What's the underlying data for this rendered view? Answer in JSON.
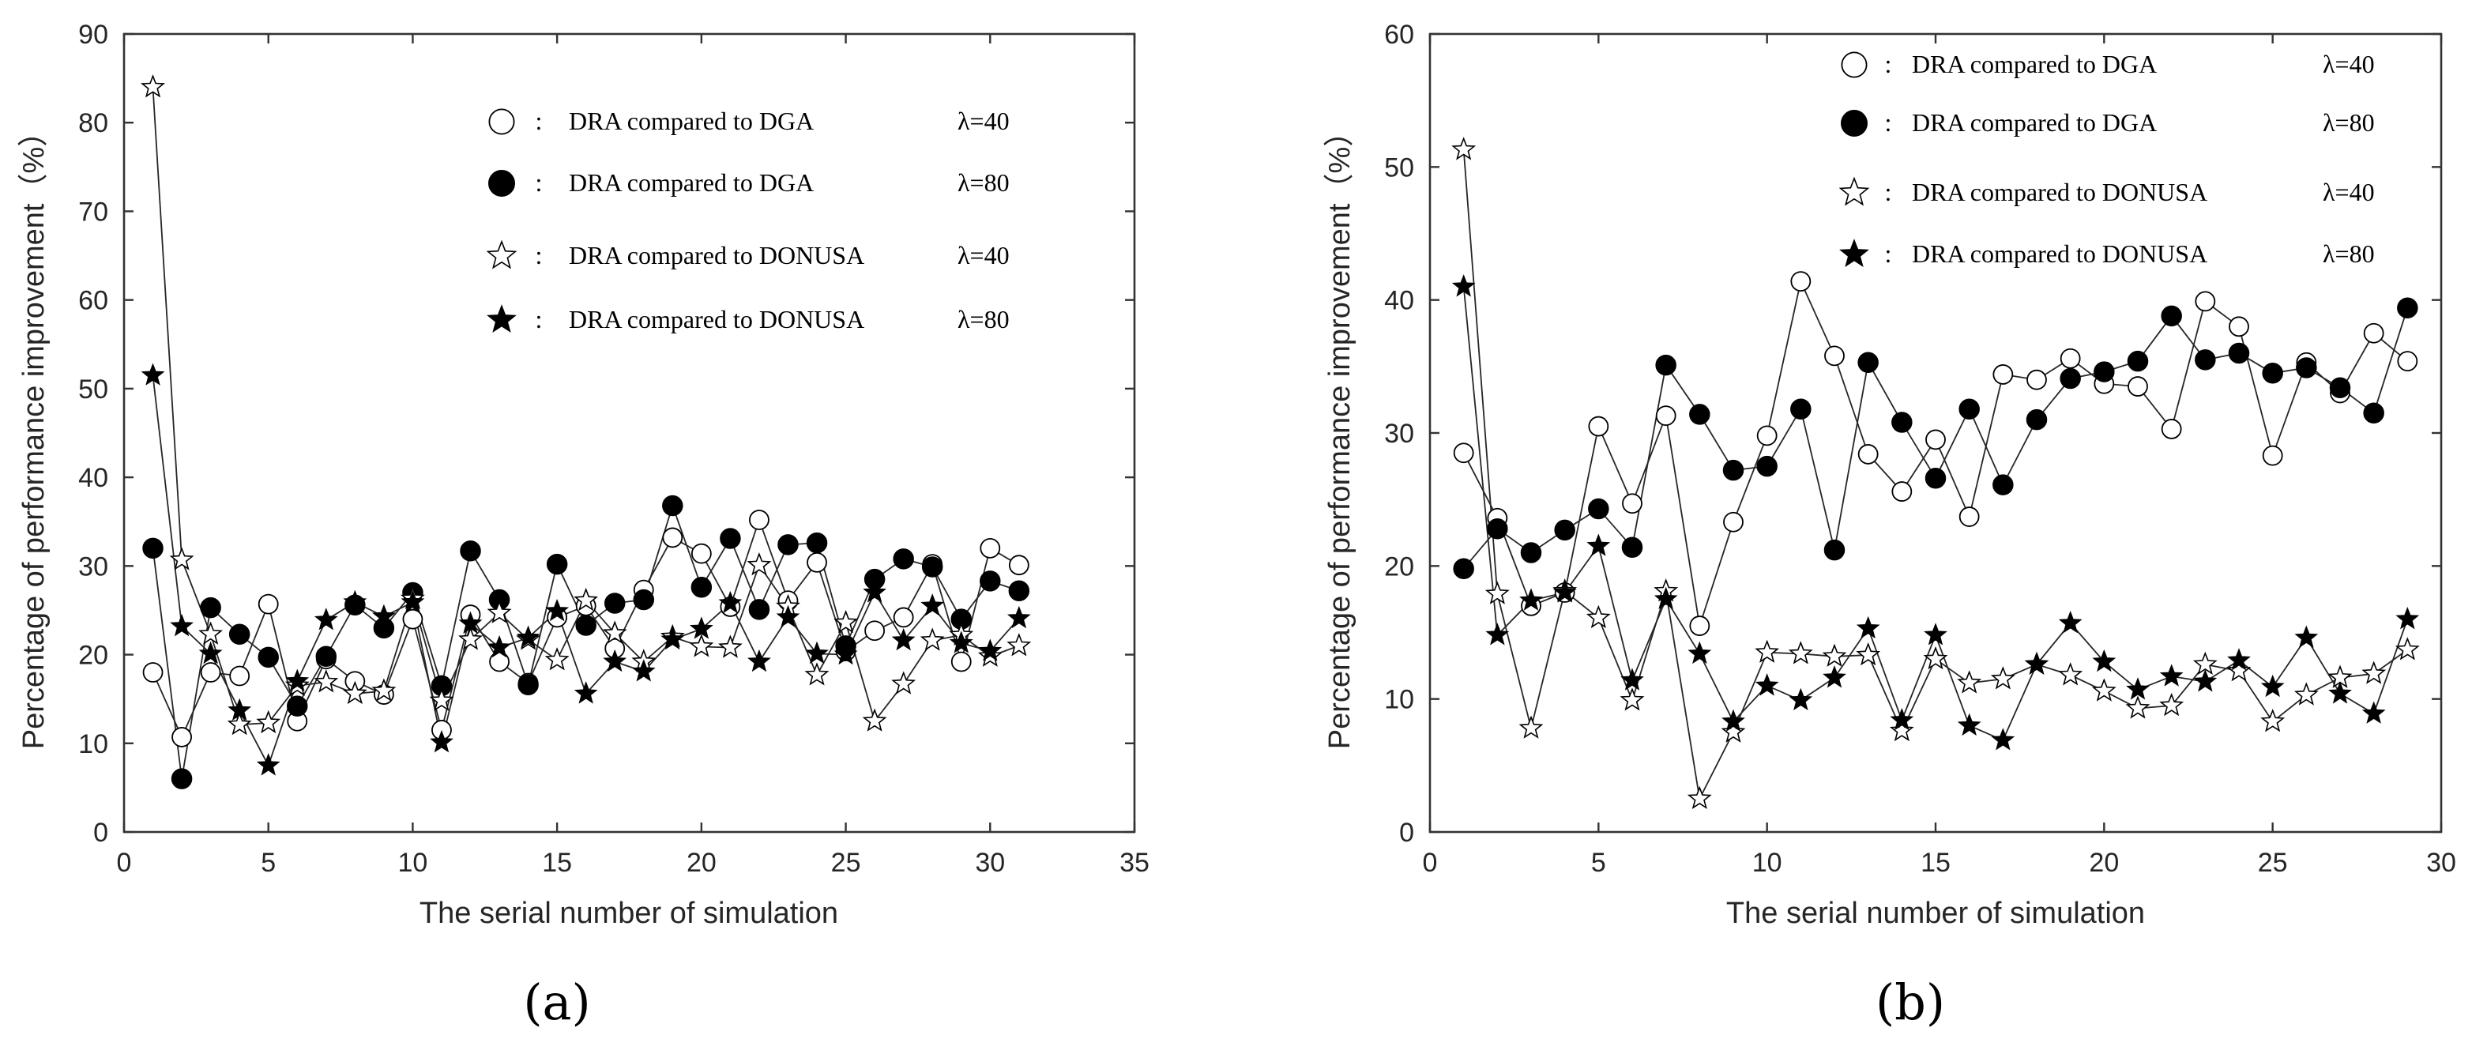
{
  "chart_data": [
    {
      "type": "line",
      "panel_label": "(a)",
      "xlabel": "The serial number of simulation",
      "ylabel": "Percentage of performance improvement（%）",
      "xlim": [
        0,
        35
      ],
      "ylim": [
        0,
        90
      ],
      "xticks": [
        0,
        5,
        10,
        15,
        20,
        25,
        30,
        35
      ],
      "yticks": [
        0,
        10,
        20,
        30,
        40,
        50,
        60,
        70,
        80,
        90
      ],
      "legend_position": "top-right",
      "grid": false,
      "series": [
        {
          "name": "DRA compared to DGA",
          "lambda": "λ=40",
          "marker": "open-circle",
          "x": [
            1,
            2,
            3,
            4,
            5,
            6,
            7,
            8,
            9,
            10,
            11,
            12,
            13,
            14,
            15,
            16,
            17,
            18,
            19,
            20,
            21,
            22,
            23,
            24,
            25,
            26,
            27,
            28,
            29,
            30,
            31
          ],
          "values": [
            18,
            10.7,
            18,
            17.6,
            25.7,
            12.5,
            19.5,
            17,
            15.5,
            24,
            11.5,
            24.5,
            19.2,
            16.8,
            24.2,
            25.5,
            20.7,
            27.3,
            33.2,
            31.4,
            25.4,
            35.2,
            26.1,
            30.4,
            20.4,
            22.7,
            24.2,
            30.2,
            19.2,
            32,
            30.1
          ]
        },
        {
          "name": "DRA compared to DGA",
          "lambda": "λ=80",
          "marker": "filled-circle",
          "x": [
            1,
            2,
            3,
            4,
            5,
            6,
            7,
            8,
            9,
            10,
            11,
            12,
            13,
            14,
            15,
            16,
            17,
            18,
            19,
            20,
            21,
            22,
            23,
            24,
            25,
            26,
            27,
            28,
            29,
            30,
            31
          ],
          "values": [
            32,
            6,
            25.3,
            22.3,
            19.7,
            14.2,
            19.8,
            25.6,
            23,
            27,
            16.5,
            31.7,
            26.2,
            16.6,
            30.2,
            23.3,
            25.8,
            26.2,
            36.8,
            27.6,
            33.1,
            25.1,
            32.4,
            32.6,
            21,
            28.5,
            30.8,
            29.9,
            24,
            28.3,
            27.2
          ]
        },
        {
          "name": "DRA compared to DONUSA",
          "lambda": "λ=40",
          "marker": "open-star",
          "x": [
            1,
            2,
            3,
            4,
            5,
            6,
            7,
            8,
            9,
            10,
            11,
            12,
            13,
            14,
            15,
            16,
            17,
            18,
            19,
            20,
            21,
            22,
            23,
            24,
            25,
            26,
            27,
            28,
            29,
            30,
            31
          ],
          "values": [
            84,
            30.7,
            22.3,
            12.1,
            12.3,
            16.5,
            16.9,
            15.6,
            15.9,
            26.3,
            14.8,
            21.7,
            24.7,
            21.7,
            19.4,
            26.1,
            22.4,
            19.2,
            22,
            20.9,
            20.8,
            30.1,
            25.4,
            17.7,
            23.6,
            12.5,
            16.7,
            21.6,
            22.2,
            19.8,
            21
          ]
        },
        {
          "name": "DRA compared to DONUSA",
          "lambda": "λ=80",
          "marker": "filled-star",
          "x": [
            1,
            2,
            3,
            4,
            5,
            6,
            7,
            8,
            9,
            10,
            11,
            12,
            13,
            14,
            15,
            16,
            17,
            18,
            19,
            20,
            21,
            22,
            23,
            24,
            25,
            26,
            27,
            28,
            29,
            30,
            31
          ],
          "values": [
            51.5,
            23.2,
            20.1,
            13.7,
            7.5,
            17,
            23.9,
            25.9,
            24.3,
            25.9,
            10.1,
            23.5,
            20.8,
            21.9,
            24.9,
            15.6,
            19.2,
            18.1,
            21.7,
            22.9,
            25.8,
            19.2,
            24.2,
            20.1,
            20,
            27,
            21.6,
            25.5,
            21.3,
            20.4,
            24.1
          ]
        }
      ]
    },
    {
      "type": "line",
      "panel_label": "(b)",
      "xlabel": "The serial number of simulation",
      "ylabel": "Percentage of performance improvement（%）",
      "xlim": [
        0,
        30
      ],
      "ylim": [
        0,
        60
      ],
      "xticks": [
        0,
        5,
        10,
        15,
        20,
        25,
        30
      ],
      "yticks": [
        0,
        10,
        20,
        30,
        40,
        50,
        60
      ],
      "legend_position": "top-right",
      "grid": false,
      "series": [
        {
          "name": "DRA compared to DGA",
          "lambda": "λ=40",
          "marker": "open-circle",
          "x": [
            1,
            2,
            3,
            4,
            5,
            6,
            7,
            8,
            9,
            10,
            11,
            12,
            13,
            14,
            15,
            16,
            17,
            18,
            19,
            20,
            21,
            22,
            23,
            24,
            25,
            26,
            27,
            28,
            29
          ],
          "values": [
            28.5,
            23.6,
            17,
            18,
            30.5,
            24.7,
            31.3,
            15.5,
            23.3,
            29.8,
            41.4,
            35.8,
            28.4,
            25.6,
            29.5,
            23.7,
            34.4,
            34,
            35.6,
            33.7,
            33.5,
            30.3,
            39.9,
            38,
            28.3,
            35.3,
            33,
            37.5,
            35.4
          ]
        },
        {
          "name": "DRA compared to DGA",
          "lambda": "λ=80",
          "marker": "filled-circle",
          "x": [
            1,
            2,
            3,
            4,
            5,
            6,
            7,
            8,
            9,
            10,
            11,
            12,
            13,
            14,
            15,
            16,
            17,
            18,
            19,
            20,
            21,
            22,
            23,
            24,
            25,
            26,
            27,
            28,
            29
          ],
          "values": [
            19.8,
            22.8,
            21,
            22.7,
            24.3,
            21.4,
            35.1,
            31.4,
            27.2,
            27.5,
            31.8,
            21.2,
            35.3,
            30.8,
            26.6,
            31.8,
            26.1,
            31,
            34.1,
            34.6,
            35.4,
            38.8,
            35.5,
            36,
            34.5,
            34.9,
            33.4,
            31.5,
            39.4
          ]
        },
        {
          "name": "DRA compared to DONUSA",
          "lambda": "λ=40",
          "marker": "open-star",
          "x": [
            1,
            2,
            3,
            4,
            5,
            6,
            7,
            8,
            9,
            10,
            11,
            12,
            13,
            14,
            15,
            16,
            17,
            18,
            19,
            20,
            21,
            22,
            23,
            24,
            25,
            26,
            27,
            28,
            29
          ],
          "values": [
            51.3,
            17.9,
            7.8,
            18.1,
            16.1,
            9.9,
            18.1,
            2.5,
            7.5,
            13.5,
            13.4,
            13.2,
            13.3,
            7.6,
            13,
            11.2,
            11.5,
            12.6,
            11.8,
            10.6,
            9.3,
            9.5,
            12.6,
            12.1,
            8.3,
            10.3,
            11.6,
            11.9,
            13.7
          ]
        },
        {
          "name": "DRA compared to DONUSA",
          "lambda": "λ=80",
          "marker": "filled-star",
          "x": [
            1,
            2,
            3,
            4,
            5,
            6,
            7,
            8,
            9,
            10,
            11,
            12,
            13,
            14,
            15,
            16,
            17,
            18,
            19,
            20,
            21,
            22,
            23,
            24,
            25,
            26,
            27,
            28,
            29
          ],
          "values": [
            41,
            14.8,
            17.4,
            18,
            21.5,
            11.4,
            17.5,
            13.4,
            8.3,
            11,
            9.9,
            11.6,
            15.3,
            8.4,
            14.8,
            8,
            6.9,
            12.6,
            15.7,
            12.8,
            10.7,
            11.7,
            11.3,
            12.9,
            10.9,
            14.6,
            10.4,
            8.9,
            16
          ]
        }
      ]
    }
  ]
}
